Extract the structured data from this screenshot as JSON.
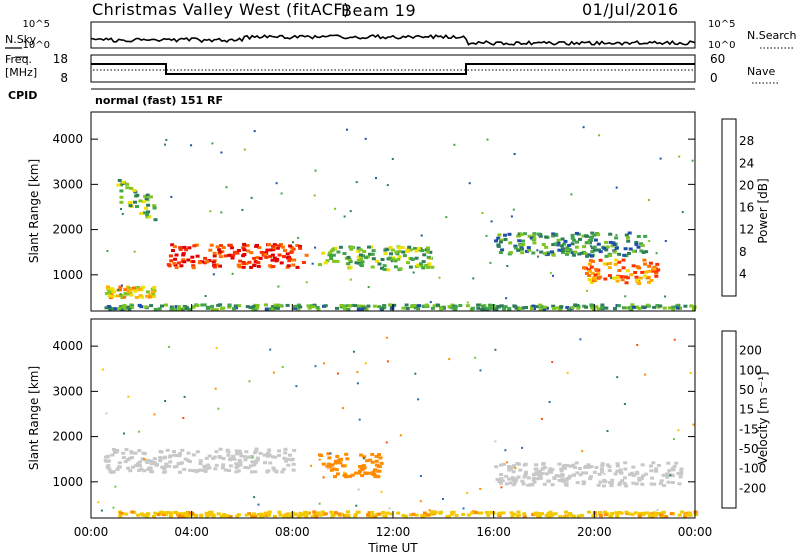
{
  "header": {
    "station": "Christmas Valley West (fitACF)",
    "beam": "Beam 19",
    "date": "01/Jul/2016"
  },
  "side_labels": {
    "nsky": "N.Sky",
    "freq_line1": "Freq.",
    "freq_line2": "[MHz]",
    "cpid": "CPID",
    "nsearch": "N.Search",
    "nave": "Nave"
  },
  "top_panels": {
    "noise_ticks_left": [
      "10^5",
      "10^0"
    ],
    "noise_ticks_right": [
      "10^5",
      "10^0"
    ],
    "freq_ticks_left": [
      "18",
      "8"
    ],
    "nave_ticks_right": [
      "60",
      "0"
    ],
    "cpid_text": "normal (fast) 151 RF"
  },
  "colors": {
    "power_scale": [
      "#0000ff",
      "#1f4fa8",
      "#2e7d5a",
      "#41a34a",
      "#7fc520",
      "#f0e000",
      "#ffb000",
      "#ff7000",
      "#ff3000",
      "#e00000"
    ],
    "velocity_scale": [
      "#1a1aa8",
      "#2e6db8",
      "#2e7d5a",
      "#6ec93a",
      "#c8c8c8",
      "#f2c900",
      "#ff8c00",
      "#ff5500",
      "#e00000"
    ]
  },
  "chart_data": [
    {
      "type": "heatmap",
      "panel": "power",
      "ylabel": "Slant Range [km]",
      "yticks": [
        "1000",
        "2000",
        "3000",
        "4000"
      ],
      "ylim": [
        200,
        4600
      ],
      "xlim": [
        0,
        24
      ],
      "colorbar": {
        "label": "Power [dB]",
        "ticks": [
          "4",
          "8",
          "12",
          "16",
          "20",
          "24",
          "28"
        ],
        "range": [
          0,
          30
        ]
      },
      "features": [
        {
          "name": "near-range band",
          "t_start": 0.5,
          "t_end": 24,
          "range_km": 250,
          "level_db": 10
        },
        {
          "name": "early arc",
          "t_start": 0.5,
          "t_end": 2.5,
          "range_km": 650,
          "level_db": 18
        },
        {
          "name": "strong echo",
          "t_start": 3.0,
          "t_end": 8.5,
          "range_km": 1450,
          "level_db": 26
        },
        {
          "name": "diagonal streak",
          "t_start": 1.0,
          "t_end": 2.5,
          "range_km": 2900,
          "level_db": 12
        },
        {
          "name": "mid-day band",
          "t_start": 9.0,
          "t_end": 13.5,
          "range_km": 1400,
          "level_db": 12
        },
        {
          "name": "evening band",
          "t_start": 16.0,
          "t_end": 22.0,
          "range_km": 1700,
          "level_db": 9
        },
        {
          "name": "evening enhancement",
          "t_start": 19.5,
          "t_end": 22.5,
          "range_km": 1100,
          "level_db": 22
        }
      ]
    },
    {
      "type": "heatmap",
      "panel": "velocity",
      "ylabel": "Slant Range [km]",
      "yticks": [
        "1000",
        "2000",
        "3000",
        "4000"
      ],
      "ylim": [
        200,
        4600
      ],
      "xlim": [
        0,
        24
      ],
      "xlabel": "Time UT",
      "xticks": [
        "00:00",
        "04:00",
        "08:00",
        "12:00",
        "16:00",
        "20:00",
        "00:00"
      ],
      "colorbar": {
        "label": "Velocity [m s⁻¹]",
        "ticks": [
          "200",
          "100",
          "50",
          "15",
          "-15",
          "-50",
          "-100",
          "-200"
        ],
        "range": [
          -250,
          250
        ]
      },
      "features": [
        {
          "name": "ground scatter",
          "t_start": 0.5,
          "t_end": 8.0,
          "range_km": 1500,
          "velocity_ms": 0
        },
        {
          "name": "near-range flow",
          "t_start": 1.0,
          "t_end": 24,
          "range_km": 250,
          "velocity_ms": -40
        },
        {
          "name": "mid-day flow",
          "t_start": 9.0,
          "t_end": 11.5,
          "range_km": 1400,
          "velocity_ms": -80
        },
        {
          "name": "evening gs",
          "t_start": 16.0,
          "t_end": 23.5,
          "range_km": 1200,
          "velocity_ms": 0
        }
      ]
    }
  ]
}
